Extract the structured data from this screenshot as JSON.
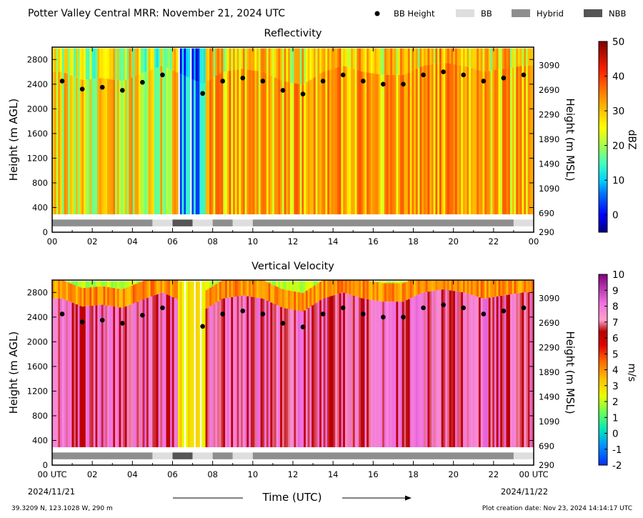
{
  "figure": {
    "title": "Potter Valley Central MRR:  November 21, 2024 UTC",
    "footer_left": "39.3209 N, 123.1028 W, 290 m",
    "footer_right": "Plot creation date: Nov 23, 2024 14:14:17 UTC",
    "xlabel": "Time (UTC)",
    "start_date": "2024/11/21",
    "end_date": "2024/11/22"
  },
  "legend": {
    "items": [
      {
        "label": "BB Height",
        "symbol": "dot",
        "color": "#000000"
      },
      {
        "label": "BB",
        "symbol": "rect",
        "color": "#dedede"
      },
      {
        "label": "Hybrid",
        "symbol": "rect",
        "color": "#8e8e8e"
      },
      {
        "label": "NBB",
        "symbol": "rect",
        "color": "#555555"
      }
    ]
  },
  "chart_data": [
    {
      "type": "heatmap",
      "title": "Reflectivity",
      "xlabel": "Time (UTC)",
      "ylabel": "Height (m AGL)",
      "ylabel_right": "Height (m MSL)",
      "colorbar_label": "dBZ",
      "xlim": [
        0,
        24
      ],
      "ylim": [
        0,
        3000
      ],
      "x_ticks": [
        "00",
        "02",
        "04",
        "06",
        "08",
        "10",
        "12",
        "14",
        "16",
        "18",
        "20",
        "22",
        "00"
      ],
      "y_ticks": [
        0,
        400,
        800,
        1200,
        1600,
        2000,
        2400,
        2800
      ],
      "y_right_ticks": [
        290,
        690,
        1090,
        1490,
        1890,
        2290,
        2690,
        3090
      ],
      "colorbar": {
        "min": -5,
        "max": 50,
        "ticks": [
          0,
          10,
          20,
          30,
          40,
          50
        ]
      },
      "bb_height": {
        "x": [
          0.5,
          1.5,
          2.5,
          3.5,
          4.5,
          5.5,
          7.5,
          8.5,
          9.5,
          10.5,
          11.5,
          12.5,
          13.5,
          14.5,
          15.5,
          16.5,
          17.5,
          18.5,
          19.5,
          20.5,
          21.5,
          22.5,
          23.5
        ],
        "y": [
          2450,
          2320,
          2350,
          2300,
          2430,
          2550,
          2250,
          2450,
          2500,
          2450,
          2300,
          2240,
          2450,
          2550,
          2450,
          2400,
          2400,
          2550,
          2600,
          2550,
          2450,
          2500,
          2550
        ]
      },
      "classification": [
        {
          "start": 0,
          "end": 5,
          "class": "Hybrid"
        },
        {
          "start": 5,
          "end": 6,
          "class": "BB"
        },
        {
          "start": 6,
          "end": 7,
          "class": "NBB"
        },
        {
          "start": 7,
          "end": 8,
          "class": "BB"
        },
        {
          "start": 8,
          "end": 9,
          "class": "Hybrid"
        },
        {
          "start": 9,
          "end": 10,
          "class": "BB"
        },
        {
          "start": 10,
          "end": 23,
          "class": "Hybrid"
        },
        {
          "start": 23,
          "end": 24,
          "class": "BB"
        }
      ]
    },
    {
      "type": "heatmap",
      "title": "Vertical Velocity",
      "xlabel": "Time (UTC)",
      "ylabel": "Height (m AGL)",
      "ylabel_right": "Height (m MSL)",
      "colorbar_label": "m/s",
      "xlim": [
        0,
        24
      ],
      "ylim": [
        0,
        3000
      ],
      "x_ticks": [
        "00 UTC",
        "02",
        "04",
        "06",
        "08",
        "10",
        "12",
        "14",
        "16",
        "18",
        "20",
        "22",
        "00 UTC"
      ],
      "y_ticks": [
        0,
        400,
        800,
        1200,
        1600,
        2000,
        2400,
        2800
      ],
      "y_right_ticks": [
        290,
        690,
        1090,
        1490,
        1890,
        2290,
        2690,
        3090
      ],
      "colorbar": {
        "min": -2,
        "max": 10,
        "ticks": [
          -2,
          -1,
          0,
          1,
          2,
          3,
          4,
          5,
          6,
          7,
          8,
          9,
          10
        ]
      },
      "bb_height": {
        "x": [
          0.5,
          1.5,
          2.5,
          3.5,
          4.5,
          5.5,
          7.5,
          8.5,
          9.5,
          10.5,
          11.5,
          12.5,
          13.5,
          14.5,
          15.5,
          16.5,
          17.5,
          18.5,
          19.5,
          20.5,
          21.5,
          22.5,
          23.5
        ],
        "y": [
          2450,
          2320,
          2350,
          2300,
          2430,
          2550,
          2250,
          2450,
          2500,
          2450,
          2300,
          2240,
          2450,
          2550,
          2450,
          2400,
          2400,
          2550,
          2600,
          2550,
          2450,
          2500,
          2550
        ]
      },
      "classification": [
        {
          "start": 0,
          "end": 5,
          "class": "Hybrid"
        },
        {
          "start": 5,
          "end": 6,
          "class": "BB"
        },
        {
          "start": 6,
          "end": 7,
          "class": "NBB"
        },
        {
          "start": 7,
          "end": 8,
          "class": "BB"
        },
        {
          "start": 8,
          "end": 9,
          "class": "Hybrid"
        },
        {
          "start": 9,
          "end": 10,
          "class": "BB"
        },
        {
          "start": 10,
          "end": 23,
          "class": "Hybrid"
        },
        {
          "start": 23,
          "end": 24,
          "class": "BB"
        }
      ]
    }
  ]
}
